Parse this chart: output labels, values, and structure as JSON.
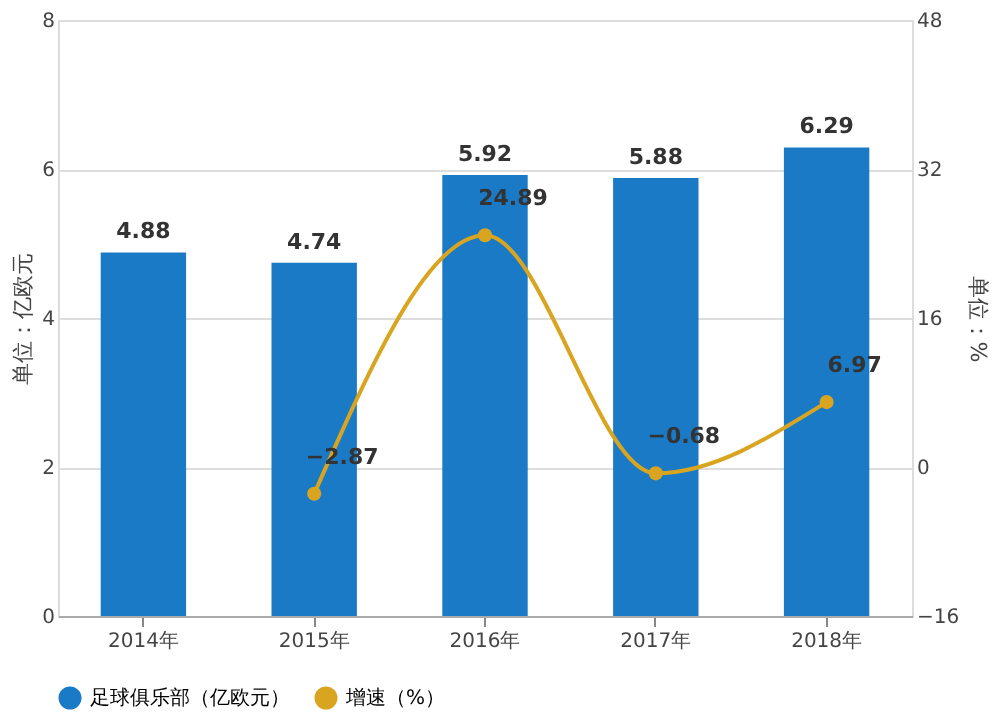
{
  "chart_data": {
    "type": "bar",
    "categories": [
      "2014年",
      "2015年",
      "2016年",
      "2017年",
      "2018年"
    ],
    "ylabel": "单位：亿欧元",
    "y2label": "单位：%",
    "series": [
      {
        "name": "足球俱乐部（亿欧元）",
        "color": "#1a7ac6",
        "values": [
          4.88,
          4.74,
          5.92,
          5.88,
          6.29
        ]
      },
      {
        "name": "增速（%）",
        "color": "#d9a520",
        "type": "line",
        "axis": "y2",
        "marker": "circle",
        "values": [
          null,
          -2.87,
          24.89,
          -0.68,
          6.97
        ]
      }
    ],
    "ylim": [
      0,
      8
    ],
    "yticks": [
      0,
      2,
      4,
      6,
      8
    ],
    "y2lim": [
      -16,
      48
    ],
    "y2ticks": [
      -16,
      0,
      16,
      32,
      48
    ],
    "grid": "y",
    "legend": "bottom",
    "data_labels": true
  }
}
